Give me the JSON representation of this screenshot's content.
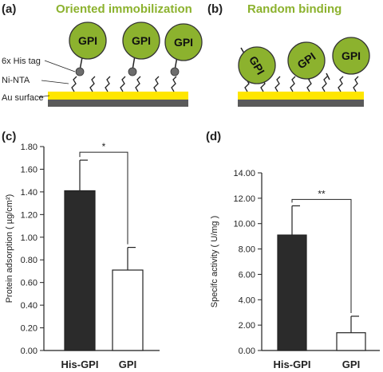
{
  "panels": {
    "a": {
      "label": "(a)",
      "title": "Oriented immobilization",
      "labels": {
        "his_tag": "6x His tag",
        "ni_nta": "Ni-NTA",
        "au_surface": "Au surface"
      },
      "gpi": [
        "GPI",
        "GPI",
        "GPI"
      ]
    },
    "b": {
      "label": "(b)",
      "title": "Random binding",
      "gpi": [
        "GPI",
        "GPI",
        "GPI"
      ]
    },
    "c": {
      "label": "(c)"
    },
    "d": {
      "label": "(d)"
    }
  },
  "colors": {
    "protein": "#8cb22e",
    "gold": "#ffe600",
    "substrate": "#5a5a5a",
    "bar_dark": "#2b2b2b",
    "bar_light": "#ffffff",
    "tag": "#6d6d6d"
  },
  "icons": [
    "gpi-protein-icon",
    "his-tag-icon",
    "linker-icon",
    "gold-surface-icon"
  ],
  "chart_data": [
    {
      "type": "bar",
      "ylabel": "Protein adsorption ( µg/cm²)",
      "ylim": [
        0,
        1.8
      ],
      "yticks": [
        "0.00",
        "0.20",
        "0.40",
        "0.60",
        "0.80",
        "1.00",
        "1.20",
        "1.40",
        "1.60",
        "1.80"
      ],
      "categories": [
        "His-GPI",
        "GPI"
      ],
      "values": [
        1.41,
        0.71
      ],
      "errors": [
        0.27,
        0.2
      ],
      "significance": "*",
      "grid": false
    },
    {
      "type": "bar",
      "ylabel": "Specifc activity ( U/mg )",
      "ylim": [
        0,
        14
      ],
      "yticks": [
        "0.00",
        "2.00",
        "4.00",
        "6.00",
        "8.00",
        "10.00",
        "12.00",
        "14.00"
      ],
      "categories": [
        "His-GPI",
        "GPI"
      ],
      "values": [
        9.1,
        1.4
      ],
      "errors": [
        2.3,
        1.3
      ],
      "significance": "**",
      "grid": false
    }
  ]
}
